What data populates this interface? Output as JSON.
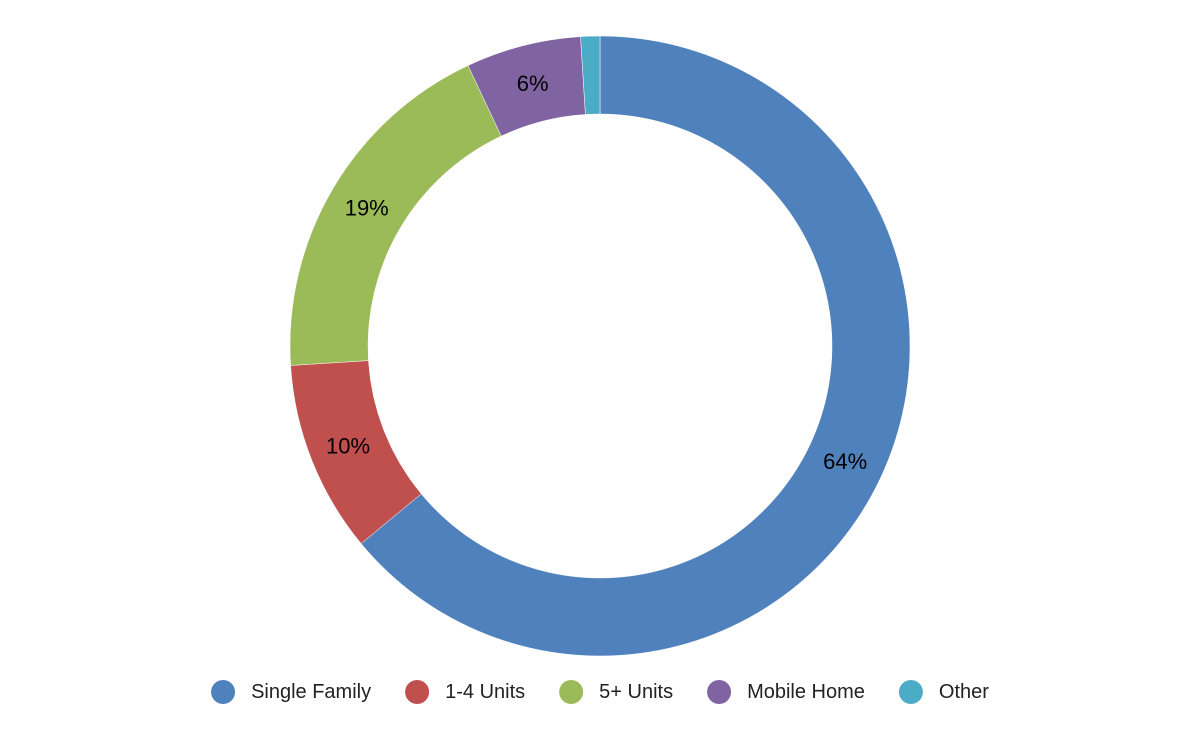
{
  "chart_data": {
    "type": "pie",
    "variant": "donut",
    "categories": [
      "Single Family",
      "1-4 Units",
      "5+ Units",
      "Mobile Home",
      "Other"
    ],
    "values": [
      64,
      10,
      19,
      6,
      1
    ],
    "data_labels": [
      "64%",
      "10%",
      "19%",
      "6%",
      ""
    ],
    "colors": [
      "#4f81bd",
      "#c0504d",
      "#9bbb59",
      "#8064a2",
      "#4bacc6"
    ],
    "legend_position": "bottom"
  }
}
